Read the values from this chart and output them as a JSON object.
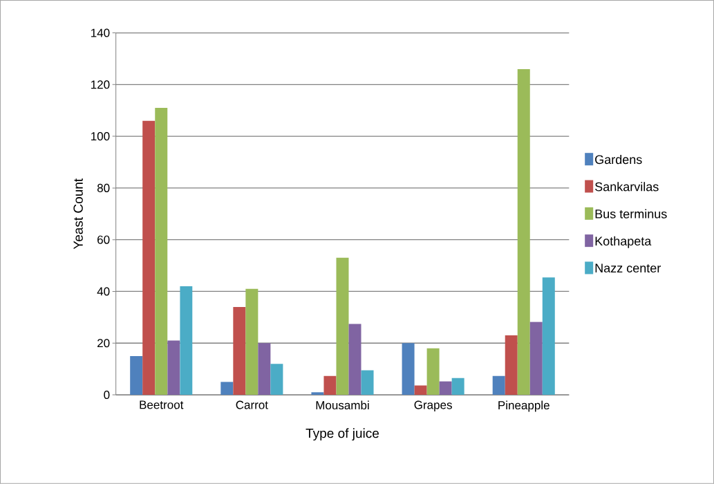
{
  "chart_data": {
    "type": "bar",
    "xlabel": "Type of juice",
    "ylabel": "Yeast  Count",
    "categories": [
      "Beetroot",
      "Carrot",
      "Mousambi",
      "Grapes",
      "Pineapple"
    ],
    "series": [
      {
        "name": "Gardens",
        "color": "#4f81bd",
        "values": [
          15,
          5,
          1,
          20,
          7.3
        ]
      },
      {
        "name": "Sankarvilas",
        "color": "#c0504d",
        "values": [
          106,
          34,
          7.3,
          3.6,
          23
        ]
      },
      {
        "name": "Bus terminus",
        "color": "#9bbb59",
        "values": [
          111,
          41,
          53,
          18,
          126
        ]
      },
      {
        "name": "Kothapeta",
        "color": "#8064a2",
        "values": [
          21,
          20,
          27.4,
          5.2,
          28.2
        ]
      },
      {
        "name": "Nazz center",
        "color": "#4bacc6",
        "values": [
          42,
          12,
          9.5,
          6.5,
          45.4
        ]
      }
    ],
    "ylim": [
      0,
      140
    ],
    "yticks": [
      0,
      20,
      40,
      60,
      80,
      100,
      120,
      140
    ],
    "grid": "y",
    "legend": "right"
  }
}
